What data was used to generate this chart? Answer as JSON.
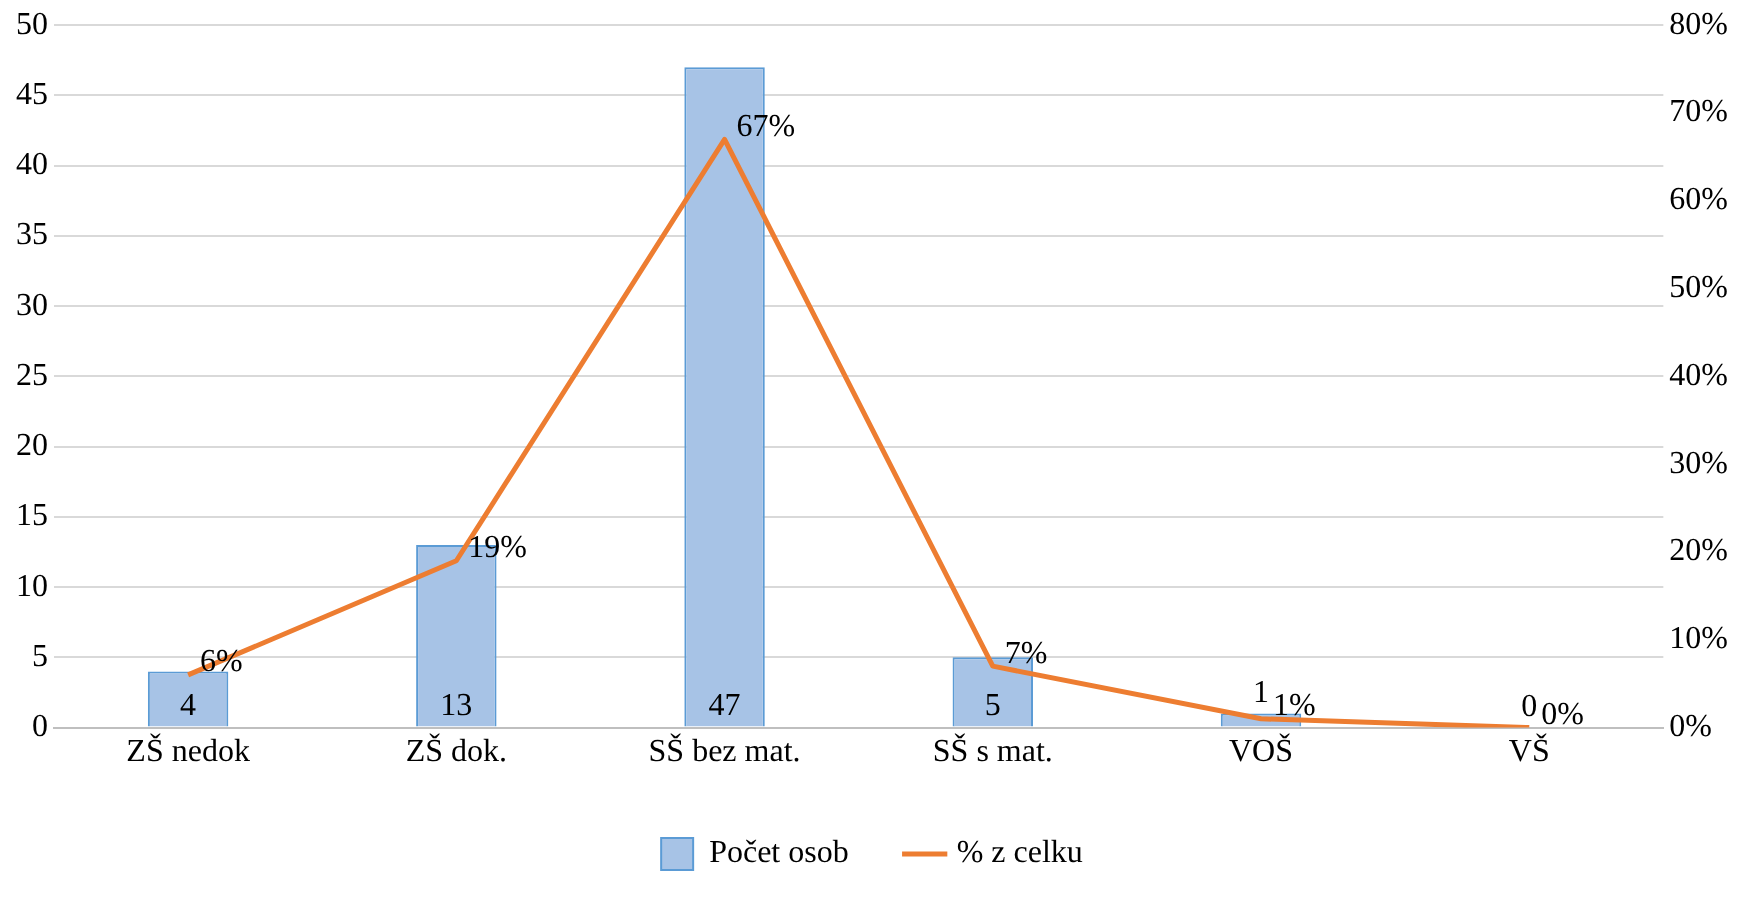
{
  "chart_data": {
    "type": "bar",
    "categories": [
      "ZŠ nedok",
      "ZŠ dok.",
      "SŠ bez mat.",
      "SŠ s mat.",
      "VOŠ",
      "VŠ"
    ],
    "series": [
      {
        "name": "Počet osob",
        "color": "#a7c3e6",
        "values": [
          4,
          13,
          47,
          5,
          1,
          0
        ],
        "value_labels": [
          "4",
          "13",
          "47",
          "5",
          "1",
          "0"
        ]
      },
      {
        "name": "% z celku",
        "type": "line",
        "axis": "y2",
        "color": "#ed7d31",
        "values": [
          6,
          19,
          67,
          7,
          1,
          0
        ],
        "value_labels": [
          "6%",
          "19%",
          "67%",
          "7%",
          "1%",
          "0%"
        ]
      }
    ],
    "ylim": [
      0,
      50
    ],
    "yticks": [
      0,
      5,
      10,
      15,
      20,
      25,
      30,
      35,
      40,
      45,
      50
    ],
    "y2lim": [
      0,
      80
    ],
    "y2ticks": [
      {
        "value": 0,
        "label": "0%"
      },
      {
        "value": 10,
        "label": "10%"
      },
      {
        "value": 20,
        "label": "20%"
      },
      {
        "value": 30,
        "label": "30%"
      },
      {
        "value": 40,
        "label": "40%"
      },
      {
        "value": 50,
        "label": "50%"
      },
      {
        "value": 60,
        "label": "60%"
      },
      {
        "value": 70,
        "label": "70%"
      },
      {
        "value": 80,
        "label": "80%"
      }
    ],
    "grid": "y",
    "legend": "bottom",
    "marker": "none",
    "line_style": "solid"
  }
}
